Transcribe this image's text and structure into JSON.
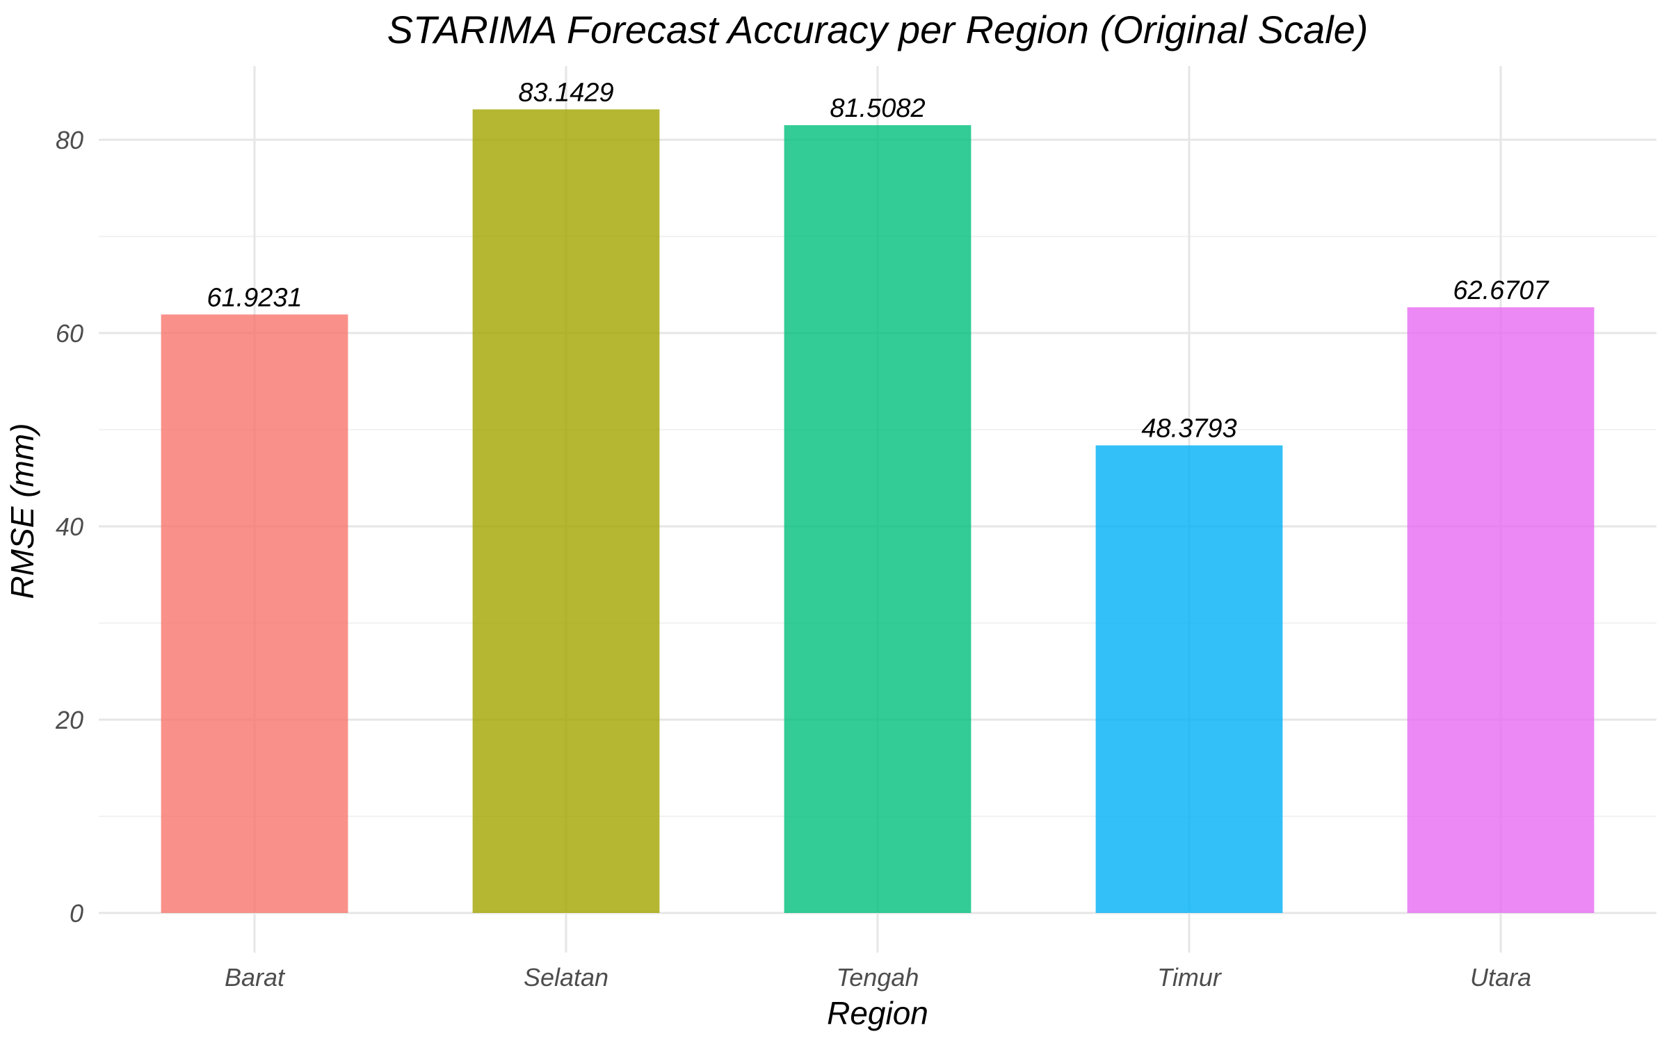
{
  "chart_data": {
    "type": "bar",
    "title": "STARIMA Forecast Accuracy per Region (Original Scale)",
    "xlabel": "Region",
    "ylabel": "RMSE (mm)",
    "categories": [
      "Barat",
      "Selatan",
      "Tengah",
      "Timur",
      "Utara"
    ],
    "values": [
      61.9231,
      83.1429,
      81.5082,
      48.3793,
      62.6707
    ],
    "value_labels": [
      "61.9231",
      "83.1429",
      "81.5082",
      "48.3793",
      "62.6707"
    ],
    "colors": [
      "#F8766D",
      "#A3A500",
      "#00BF7D",
      "#00B0F6",
      "#E76BF3"
    ],
    "bar_opacity": 0.8,
    "ylim": [
      0,
      87.3
    ],
    "yticks": [
      0,
      20,
      40,
      60,
      80
    ],
    "ytick_labels": [
      "0",
      "20",
      "40",
      "60",
      "80"
    ],
    "grid": true,
    "legend": "none"
  }
}
